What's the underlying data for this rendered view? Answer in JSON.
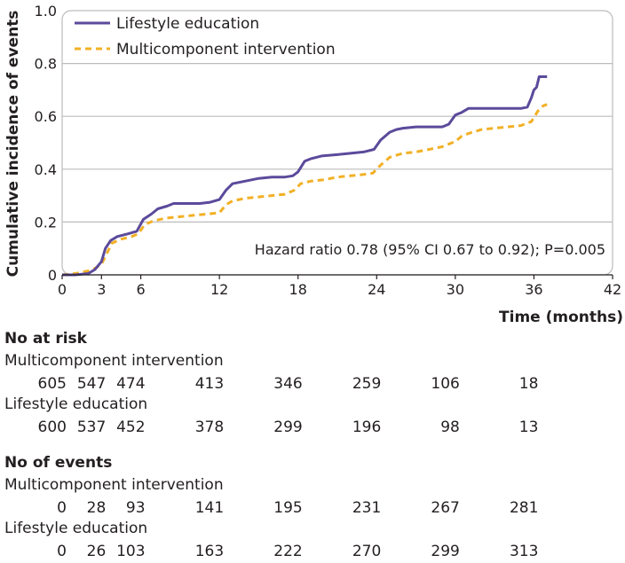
{
  "chart_data": {
    "type": "line",
    "title": "",
    "xlabel": "Time (months)",
    "ylabel": "Cumulative incidence of events",
    "xlim": [
      0,
      42
    ],
    "ylim": [
      0,
      1.0
    ],
    "x_ticks": [
      "0",
      "3",
      "6",
      "12",
      "18",
      "24",
      "30",
      "36",
      "42"
    ],
    "y_ticks": [
      "0",
      "0.2",
      "0.4",
      "0.6",
      "0.8",
      "1.0"
    ],
    "grid": "horizontal",
    "legend_position": "top-left",
    "annotation": "Hazard ratio 0.78 (95% CI 0.67 to 0.92); P=0.005",
    "series": [
      {
        "name": "Lifestyle education",
        "color": "#5b4a9b",
        "style": "solid",
        "points": [
          [
            0,
            0
          ],
          [
            1,
            0
          ],
          [
            2,
            0.005
          ],
          [
            2.5,
            0.02
          ],
          [
            3,
            0.05
          ],
          [
            3.3,
            0.1
          ],
          [
            3.7,
            0.13
          ],
          [
            4.2,
            0.145
          ],
          [
            5,
            0.155
          ],
          [
            5.7,
            0.165
          ],
          [
            6.2,
            0.21
          ],
          [
            6.8,
            0.23
          ],
          [
            7.3,
            0.25
          ],
          [
            8,
            0.26
          ],
          [
            8.5,
            0.27
          ],
          [
            9.5,
            0.27
          ],
          [
            10.5,
            0.27
          ],
          [
            11.3,
            0.275
          ],
          [
            12,
            0.285
          ],
          [
            12.5,
            0.32
          ],
          [
            13,
            0.345
          ],
          [
            14,
            0.355
          ],
          [
            15,
            0.365
          ],
          [
            16,
            0.37
          ],
          [
            17,
            0.37
          ],
          [
            17.6,
            0.375
          ],
          [
            18,
            0.39
          ],
          [
            18.5,
            0.43
          ],
          [
            19,
            0.44
          ],
          [
            19.8,
            0.45
          ],
          [
            21,
            0.455
          ],
          [
            22,
            0.46
          ],
          [
            23,
            0.465
          ],
          [
            23.8,
            0.475
          ],
          [
            24.3,
            0.51
          ],
          [
            25,
            0.54
          ],
          [
            25.5,
            0.55
          ],
          [
            26,
            0.555
          ],
          [
            27,
            0.56
          ],
          [
            28,
            0.56
          ],
          [
            29,
            0.56
          ],
          [
            29.5,
            0.57
          ],
          [
            30,
            0.605
          ],
          [
            30.5,
            0.615
          ],
          [
            31,
            0.63
          ],
          [
            32,
            0.63
          ],
          [
            33,
            0.63
          ],
          [
            34,
            0.63
          ],
          [
            35,
            0.63
          ],
          [
            35.5,
            0.635
          ],
          [
            35.8,
            0.67
          ],
          [
            36,
            0.7
          ],
          [
            36.2,
            0.71
          ],
          [
            36.4,
            0.75
          ],
          [
            37,
            0.75
          ]
        ]
      },
      {
        "name": "Multicomponent intervention",
        "color": "#f2b025",
        "style": "dashed",
        "points": [
          [
            0,
            0
          ],
          [
            1,
            0.005
          ],
          [
            2,
            0.015
          ],
          [
            2.5,
            0.025
          ],
          [
            3,
            0.04
          ],
          [
            3.4,
            0.08
          ],
          [
            3.8,
            0.12
          ],
          [
            4.5,
            0.135
          ],
          [
            5.3,
            0.145
          ],
          [
            5.8,
            0.155
          ],
          [
            6.3,
            0.19
          ],
          [
            7,
            0.205
          ],
          [
            8,
            0.215
          ],
          [
            9,
            0.22
          ],
          [
            10,
            0.225
          ],
          [
            11,
            0.23
          ],
          [
            12,
            0.235
          ],
          [
            12.5,
            0.265
          ],
          [
            13,
            0.28
          ],
          [
            14,
            0.29
          ],
          [
            15,
            0.295
          ],
          [
            16,
            0.3
          ],
          [
            17,
            0.305
          ],
          [
            17.7,
            0.32
          ],
          [
            18.2,
            0.345
          ],
          [
            19,
            0.355
          ],
          [
            20,
            0.36
          ],
          [
            21,
            0.37
          ],
          [
            22,
            0.375
          ],
          [
            23,
            0.38
          ],
          [
            23.7,
            0.385
          ],
          [
            24.3,
            0.415
          ],
          [
            25,
            0.445
          ],
          [
            26,
            0.46
          ],
          [
            27,
            0.465
          ],
          [
            28,
            0.475
          ],
          [
            29,
            0.485
          ],
          [
            30,
            0.505
          ],
          [
            30.5,
            0.525
          ],
          [
            31,
            0.535
          ],
          [
            32,
            0.55
          ],
          [
            33,
            0.555
          ],
          [
            34,
            0.56
          ],
          [
            35,
            0.565
          ],
          [
            35.8,
            0.58
          ],
          [
            36.3,
            0.62
          ],
          [
            36.7,
            0.64
          ],
          [
            37,
            0.645
          ]
        ]
      }
    ]
  },
  "risk_table": {
    "at_risk_title": "No at risk",
    "events_title": "No of events",
    "times": [
      0,
      3,
      6,
      12,
      18,
      24,
      30,
      36
    ],
    "at_risk": [
      {
        "label": "Multicomponent intervention",
        "values": [
          "605",
          "547",
          "474",
          "413",
          "346",
          "259",
          "106",
          "18"
        ]
      },
      {
        "label": "Lifestyle education",
        "values": [
          "600",
          "537",
          "452",
          "378",
          "299",
          "196",
          "98",
          "13"
        ]
      }
    ],
    "events": [
      {
        "label": "Multicomponent intervention",
        "values": [
          "0",
          "28",
          "93",
          "141",
          "195",
          "231",
          "267",
          "281"
        ]
      },
      {
        "label": "Lifestyle education",
        "values": [
          "0",
          "26",
          "103",
          "163",
          "222",
          "270",
          "299",
          "313"
        ]
      }
    ]
  }
}
